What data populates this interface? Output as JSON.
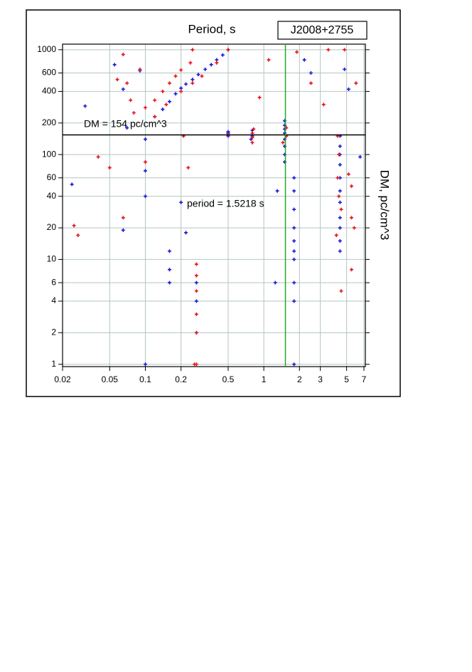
{
  "chart_data": {
    "type": "scatter",
    "title": "Period, s",
    "subtitle": "J2008+2755",
    "y_label": "DM, pc/cm^3",
    "annotations": [
      "DM = 154 pc/cm^3",
      "period = 1.5218 s"
    ],
    "log_x": true,
    "log_y": true,
    "grid": true,
    "xlim": [
      0.02,
      7.2
    ],
    "ylim": [
      0.95,
      1130
    ],
    "xticks": [
      0.02,
      0.05,
      0.1,
      0.2,
      0.5,
      1,
      2,
      3,
      5,
      7
    ],
    "yticks": [
      1,
      2,
      4,
      6,
      10,
      20,
      40,
      60,
      100,
      200,
      400,
      600,
      1000
    ],
    "hline": {
      "value": 154,
      "color": "#000000"
    },
    "vline": {
      "value": 1.5218,
      "color": "#22aa22"
    },
    "series": [
      {
        "color": "#1a1adc",
        "x": [
          0.024,
          0.031,
          0.055,
          0.065,
          0.07,
          0.09,
          0.1,
          0.1,
          0.1,
          0.1,
          0.12,
          0.14,
          0.16,
          0.18,
          0.2,
          0.22,
          0.25,
          0.28,
          0.32,
          0.36,
          0.4,
          0.45,
          0.5,
          0.16,
          0.16,
          0.16,
          0.2,
          0.22,
          0.27,
          0.27,
          0.27,
          0.5,
          0.5,
          0.5,
          0.78,
          0.8,
          0.8,
          1.5,
          1.5,
          1.5,
          1.5,
          1.5,
          1.5,
          1.5,
          1.5,
          1.3,
          1.25,
          1.8,
          1.8,
          1.8,
          1.8,
          1.8,
          1.8,
          1.8,
          1.8,
          1.8,
          1.8,
          4.4,
          4.4,
          4.4,
          4.4,
          4.4,
          4.4,
          4.4,
          4.4,
          4.4,
          4.4,
          4.4,
          2.2,
          2.5,
          4.8,
          5.2,
          6.5,
          0.065
        ],
        "values": [
          52,
          290,
          720,
          420,
          180,
          630,
          140,
          70,
          40,
          1,
          230,
          270,
          320,
          380,
          430,
          470,
          520,
          580,
          650,
          720,
          800,
          890,
          1000,
          12,
          8,
          6,
          35,
          18,
          6,
          4,
          2,
          150,
          160,
          165,
          140,
          150,
          170,
          85,
          100,
          120,
          140,
          160,
          175,
          190,
          210,
          45,
          6,
          60,
          45,
          30,
          20,
          15,
          12,
          10,
          6,
          4,
          1,
          150,
          120,
          100,
          80,
          60,
          45,
          35,
          25,
          20,
          15,
          12,
          800,
          600,
          650,
          420,
          95,
          19
        ]
      },
      {
        "color": "#e8141b",
        "x": [
          0.025,
          0.027,
          0.04,
          0.05,
          0.058,
          0.065,
          0.065,
          0.07,
          0.075,
          0.08,
          0.09,
          0.1,
          0.1,
          0.12,
          0.14,
          0.16,
          0.18,
          0.2,
          0.24,
          0.25,
          0.12,
          0.15,
          0.2,
          0.25,
          0.3,
          0.4,
          0.5,
          0.23,
          0.21,
          0.27,
          0.27,
          0.27,
          0.27,
          0.27,
          0.27,
          0.26,
          0.5,
          0.8,
          0.8,
          0.8,
          0.82,
          1.55,
          1.55,
          1.45,
          1.1,
          0.92,
          1.9,
          2.5,
          3.2,
          3.5,
          4.2,
          4.3,
          4.2,
          4.3,
          4.5,
          4.1,
          5.2,
          5.5,
          5.5,
          5.8,
          5.5,
          4.5,
          6.0,
          4.8
        ],
        "values": [
          21,
          17,
          95,
          75,
          520,
          900,
          25,
          480,
          330,
          250,
          650,
          85,
          280,
          330,
          400,
          480,
          560,
          640,
          750,
          1000,
          230,
          300,
          400,
          480,
          560,
          750,
          1000,
          75,
          150,
          9,
          7,
          5,
          3,
          2,
          1,
          1,
          155,
          130,
          145,
          160,
          175,
          150,
          180,
          130,
          800,
          350,
          950,
          480,
          300,
          1000,
          150,
          100,
          60,
          40,
          30,
          17,
          65,
          50,
          25,
          20,
          8,
          5,
          480,
          1000
        ]
      }
    ]
  }
}
